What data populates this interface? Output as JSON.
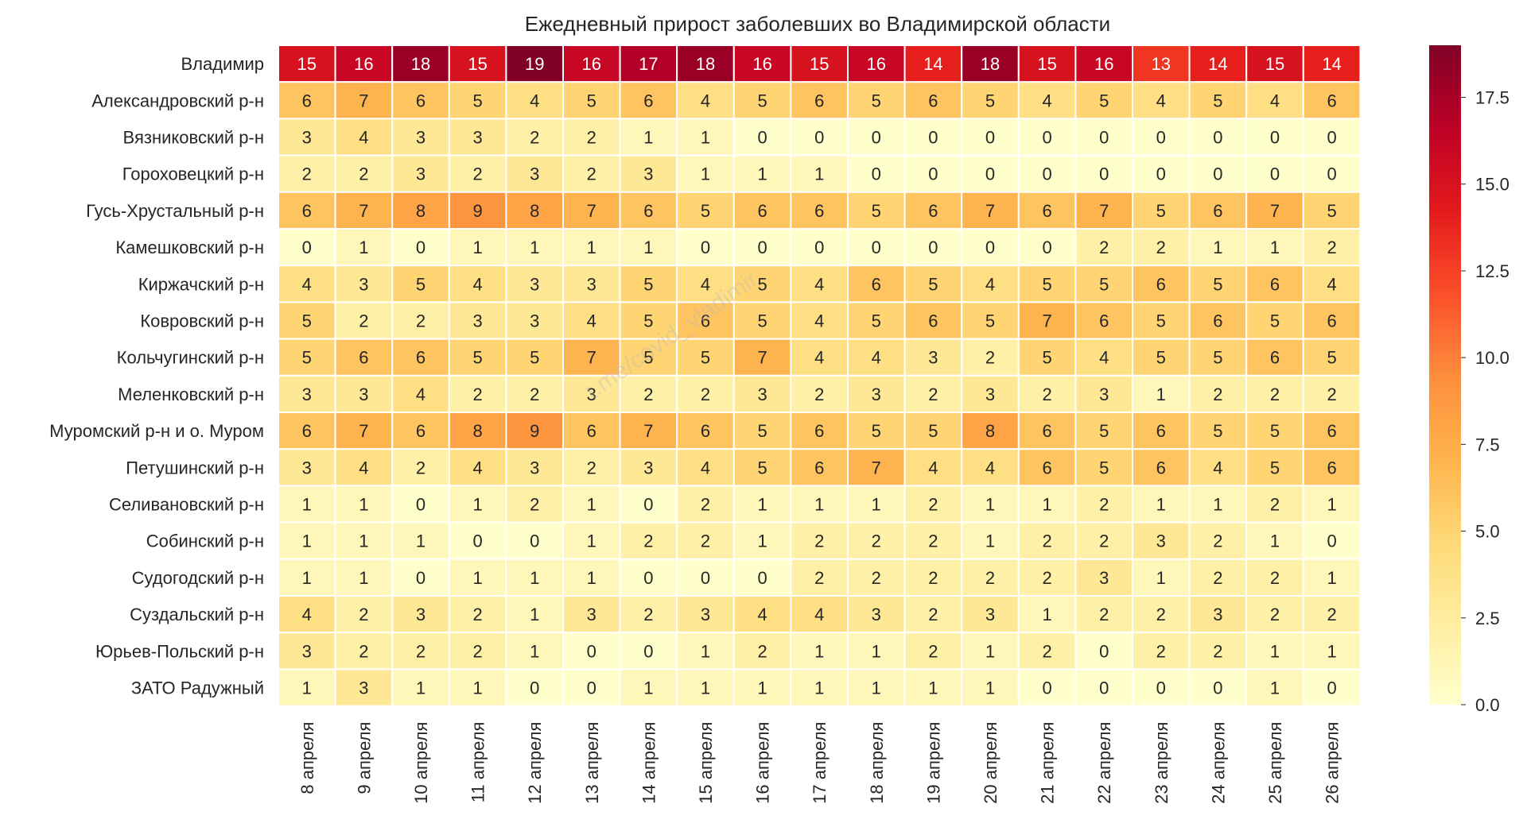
{
  "chart_data": {
    "type": "heatmap",
    "title": "Ежедневный прирост заболевших во Владимирской области",
    "xlabel": "",
    "ylabel": "",
    "watermark": "t.me/covid_vladimir",
    "x": [
      "8 апреля",
      "9 апреля",
      "10 апреля",
      "11 апреля",
      "12 апреля",
      "13 апреля",
      "14 апреля",
      "15 апреля",
      "16 апреля",
      "17 апреля",
      "18 апреля",
      "19 апреля",
      "20 апреля",
      "21 апреля",
      "22 апреля",
      "23 апреля",
      "24 апреля",
      "25 апреля",
      "26 апреля"
    ],
    "y": [
      "Владимир",
      "Александровский р-н",
      "Вязниковский р-н",
      "Гороховецкий р-н",
      "Гусь-Хрустальный р-н",
      "Камешковский р-н",
      "Киржачский р-н",
      "Ковровский р-н",
      "Кольчугинский р-н",
      "Меленковский р-н",
      "Муромский р-н и о. Муром",
      "Петушинский р-н",
      "Селивановский р-н",
      "Собинский р-н",
      "Судогодский р-н",
      "Суздальский р-н",
      "Юрьев-Польский р-н",
      "ЗАТО Радужный"
    ],
    "values": [
      [
        15,
        16,
        18,
        15,
        19,
        16,
        17,
        18,
        16,
        15,
        16,
        14,
        18,
        15,
        16,
        13,
        14,
        15,
        14
      ],
      [
        6,
        7,
        6,
        5,
        4,
        5,
        6,
        4,
        5,
        6,
        5,
        6,
        5,
        4,
        5,
        4,
        5,
        4,
        6
      ],
      [
        3,
        4,
        3,
        3,
        2,
        2,
        1,
        1,
        0,
        0,
        0,
        0,
        0,
        0,
        0,
        0,
        0,
        0,
        0
      ],
      [
        2,
        2,
        3,
        2,
        3,
        2,
        3,
        1,
        1,
        1,
        0,
        0,
        0,
        0,
        0,
        0,
        0,
        0,
        0
      ],
      [
        6,
        7,
        8,
        9,
        8,
        7,
        6,
        5,
        6,
        6,
        5,
        6,
        7,
        6,
        7,
        5,
        6,
        7,
        5
      ],
      [
        0,
        1,
        0,
        1,
        1,
        1,
        1,
        0,
        0,
        0,
        0,
        0,
        0,
        0,
        2,
        2,
        1,
        1,
        2
      ],
      [
        4,
        3,
        5,
        4,
        3,
        3,
        5,
        4,
        5,
        4,
        6,
        5,
        4,
        5,
        5,
        6,
        5,
        6,
        4
      ],
      [
        5,
        2,
        2,
        3,
        3,
        4,
        5,
        6,
        5,
        4,
        5,
        6,
        5,
        7,
        6,
        5,
        6,
        5,
        6
      ],
      [
        5,
        6,
        6,
        5,
        5,
        7,
        5,
        5,
        7,
        4,
        4,
        3,
        2,
        5,
        4,
        5,
        5,
        6,
        5
      ],
      [
        3,
        3,
        4,
        2,
        2,
        3,
        2,
        2,
        3,
        2,
        3,
        2,
        3,
        2,
        3,
        1,
        2,
        2,
        2
      ],
      [
        6,
        7,
        6,
        8,
        9,
        6,
        7,
        6,
        5,
        6,
        5,
        5,
        8,
        6,
        5,
        6,
        5,
        5,
        6
      ],
      [
        3,
        4,
        2,
        4,
        3,
        2,
        3,
        4,
        5,
        6,
        7,
        4,
        4,
        6,
        5,
        6,
        4,
        5,
        6
      ],
      [
        1,
        1,
        0,
        1,
        2,
        1,
        0,
        2,
        1,
        1,
        1,
        2,
        1,
        1,
        2,
        1,
        1,
        2,
        1
      ],
      [
        1,
        1,
        1,
        0,
        0,
        1,
        2,
        2,
        1,
        2,
        2,
        2,
        1,
        2,
        2,
        3,
        2,
        1,
        0
      ],
      [
        1,
        1,
        0,
        1,
        1,
        1,
        0,
        0,
        0,
        2,
        2,
        2,
        2,
        2,
        3,
        1,
        2,
        2,
        1
      ],
      [
        4,
        2,
        3,
        2,
        1,
        3,
        2,
        3,
        4,
        4,
        3,
        2,
        3,
        1,
        2,
        2,
        3,
        2,
        2
      ],
      [
        3,
        2,
        2,
        2,
        1,
        0,
        0,
        1,
        2,
        1,
        1,
        2,
        1,
        2,
        0,
        2,
        2,
        1,
        1
      ],
      [
        1,
        3,
        1,
        1,
        0,
        0,
        1,
        1,
        1,
        1,
        1,
        1,
        1,
        0,
        0,
        0,
        0,
        1,
        0
      ]
    ],
    "colorbar": {
      "min": 0,
      "max": 19,
      "ticks": [
        0,
        2.5,
        5,
        7.5,
        10,
        12.5,
        15,
        17.5
      ],
      "tick_labels": [
        "0.0",
        "2.5",
        "5.0",
        "7.5",
        "10.0",
        "12.5",
        "15.0",
        "17.5"
      ],
      "colormap": "YlOrRd"
    },
    "grid": false,
    "legend": "colorbar-right"
  }
}
